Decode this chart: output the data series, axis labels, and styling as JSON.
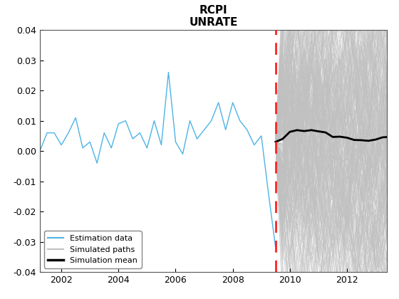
{
  "title": "RCPI\nUNRATE",
  "xlim_start": 2001.25,
  "xlim_end": 2013.4,
  "ylim": [
    -0.04,
    0.04
  ],
  "cutoff_year": 2009.5,
  "estimation_color": "#4db3e6",
  "sim_path_color": "#c0c0c0",
  "sim_mean_color": "#000000",
  "vline_color": "#ff2222",
  "yticks": [
    -0.04,
    -0.03,
    -0.02,
    -0.01,
    0.0,
    0.01,
    0.02,
    0.03,
    0.04
  ],
  "xticks": [
    2002,
    2004,
    2006,
    2008,
    2010,
    2012
  ],
  "n_sim_paths": 500,
  "n_sim_steps": 18,
  "random_seed": 42,
  "est_times": [
    2001.25,
    2001.5,
    2001.75,
    2002.0,
    2002.25,
    2002.5,
    2002.75,
    2003.0,
    2003.25,
    2003.5,
    2003.75,
    2004.0,
    2004.25,
    2004.5,
    2004.75,
    2005.0,
    2005.25,
    2005.5,
    2005.75,
    2006.0,
    2006.25,
    2006.5,
    2006.75,
    2007.0,
    2007.25,
    2007.5,
    2007.75,
    2008.0,
    2008.25,
    2008.5,
    2008.75,
    2009.0,
    2009.25
  ],
  "est_values": [
    0.0,
    0.006,
    0.006,
    0.002,
    0.006,
    0.011,
    0.001,
    0.003,
    -0.004,
    0.006,
    0.001,
    0.009,
    0.01,
    0.004,
    0.006,
    0.001,
    0.01,
    0.002,
    0.026,
    0.003,
    -0.001,
    0.01,
    0.004,
    0.007,
    0.01,
    0.016,
    0.007,
    0.016,
    0.01,
    0.007,
    0.002,
    0.005,
    -0.014
  ]
}
